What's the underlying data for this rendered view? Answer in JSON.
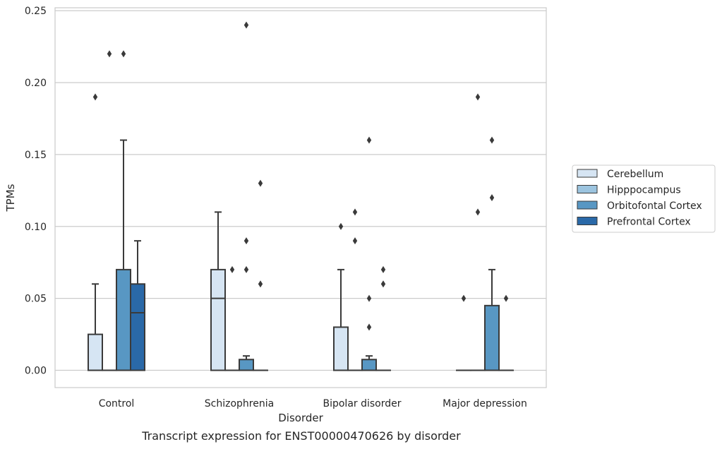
{
  "chart_data": {
    "type": "box",
    "caption": "Transcript expression for ENST00000470626 by disorder",
    "xlabel": "Disorder",
    "ylabel": "TPMs",
    "ylim": [
      -0.012,
      0.252
    ],
    "yticks": [
      0.0,
      0.05,
      0.1,
      0.15,
      0.2,
      0.25
    ],
    "ytick_labels": [
      "0.00",
      "0.05",
      "0.10",
      "0.15",
      "0.20",
      "0.25"
    ],
    "grid": "horizontal",
    "legend_position": "right",
    "categories": [
      "Control",
      "Schizophrenia",
      "Bipolar disorder",
      "Major depression"
    ],
    "series": [
      {
        "name": "Cerebellum",
        "color": "#d6e5f3",
        "boxes": [
          {
            "q1": 0.0,
            "median": 0.0,
            "q3": 0.025,
            "whisker_low": 0.0,
            "whisker_high": 0.06,
            "outliers": [
              0.19
            ]
          },
          {
            "q1": 0.0,
            "median": 0.05,
            "q3": 0.07,
            "whisker_low": 0.0,
            "whisker_high": 0.11,
            "outliers": []
          },
          {
            "q1": 0.0,
            "median": 0.0,
            "q3": 0.03,
            "whisker_low": 0.0,
            "whisker_high": 0.07,
            "outliers": [
              0.1
            ]
          },
          {
            "q1": 0.0,
            "median": 0.0,
            "q3": 0.0,
            "whisker_low": 0.0,
            "whisker_high": 0.0,
            "outliers": [
              0.05
            ]
          }
        ]
      },
      {
        "name": "Hipppocampus",
        "color": "#9cc4df",
        "boxes": [
          {
            "q1": 0.0,
            "median": 0.0,
            "q3": 0.0,
            "whisker_low": 0.0,
            "whisker_high": 0.0,
            "outliers": [
              0.22
            ]
          },
          {
            "q1": 0.0,
            "median": 0.0,
            "q3": 0.0,
            "whisker_low": 0.0,
            "whisker_high": 0.0,
            "outliers": [
              0.07
            ]
          },
          {
            "q1": 0.0,
            "median": 0.0,
            "q3": 0.0,
            "whisker_low": 0.0,
            "whisker_high": 0.0,
            "outliers": [
              0.11,
              0.09
            ]
          },
          {
            "q1": 0.0,
            "median": 0.0,
            "q3": 0.0,
            "whisker_low": 0.0,
            "whisker_high": 0.0,
            "outliers": [
              0.19,
              0.11
            ]
          }
        ]
      },
      {
        "name": "Orbitofontal Cortex",
        "color": "#5897c3",
        "boxes": [
          {
            "q1": 0.0,
            "median": 0.0,
            "q3": 0.07,
            "whisker_low": 0.0,
            "whisker_high": 0.16,
            "outliers": [
              0.22
            ]
          },
          {
            "q1": 0.0,
            "median": 0.0,
            "q3": 0.0075,
            "whisker_low": 0.0,
            "whisker_high": 0.01,
            "outliers": [
              0.24,
              0.09,
              0.07
            ]
          },
          {
            "q1": 0.0,
            "median": 0.0,
            "q3": 0.0075,
            "whisker_low": 0.0,
            "whisker_high": 0.01,
            "outliers": [
              0.16,
              0.05,
              0.03
            ]
          },
          {
            "q1": 0.0,
            "median": 0.0,
            "q3": 0.045,
            "whisker_low": 0.0,
            "whisker_high": 0.07,
            "outliers": [
              0.16,
              0.12
            ]
          }
        ]
      },
      {
        "name": "Prefrontal Cortex",
        "color": "#2a69a8",
        "boxes": [
          {
            "q1": 0.0,
            "median": 0.04,
            "q3": 0.06,
            "whisker_low": 0.0,
            "whisker_high": 0.09,
            "outliers": []
          },
          {
            "q1": 0.0,
            "median": 0.0,
            "q3": 0.0,
            "whisker_low": 0.0,
            "whisker_high": 0.0,
            "outliers": [
              0.13,
              0.06
            ]
          },
          {
            "q1": 0.0,
            "median": 0.0,
            "q3": 0.0,
            "whisker_low": 0.0,
            "whisker_high": 0.0,
            "outliers": [
              0.07,
              0.06
            ]
          },
          {
            "q1": 0.0,
            "median": 0.0,
            "q3": 0.0,
            "whisker_low": 0.0,
            "whisker_high": 0.0,
            "outliers": [
              0.05
            ]
          }
        ]
      }
    ]
  }
}
